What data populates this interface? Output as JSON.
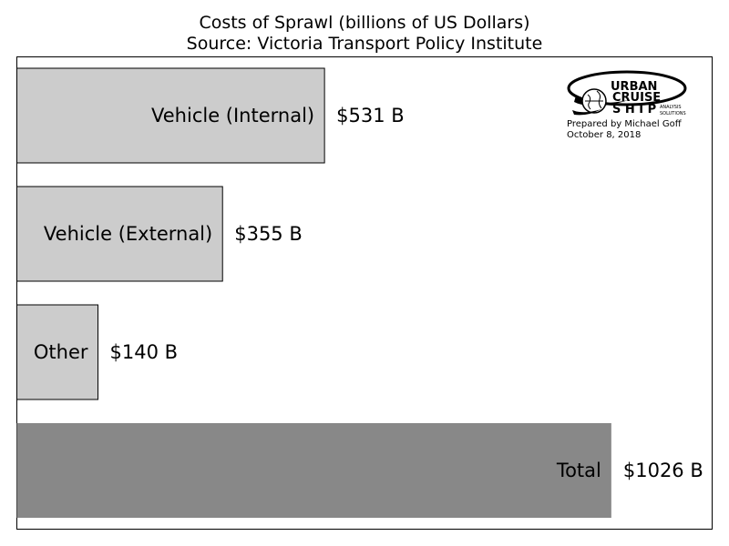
{
  "chart_data": {
    "type": "bar",
    "orientation": "horizontal",
    "title": "Costs of Sprawl (billions of US Dollars)",
    "subtitle": "Source: Victoria Transport Policy Institute",
    "categories": [
      "Vehicle (Internal)",
      "Vehicle (External)",
      "Other",
      "Total"
    ],
    "values": [
      531,
      355,
      140,
      1026
    ],
    "value_labels": [
      "$531 B",
      "$355 B",
      "$140 B",
      "$1026 B"
    ],
    "colors": [
      "#cccccc",
      "#cccccc",
      "#cccccc",
      "#888888"
    ],
    "xlim": [
      0,
      1200
    ],
    "grid": false
  },
  "logo": {
    "name": "urban-cruise-ship-logo",
    "line1": "URBAN",
    "line2": "CRUISE",
    "line3": "S H I P",
    "tagline1": "ANALYSIS",
    "tagline2": "SOLUTIONS"
  },
  "credit": {
    "prepared_by": "Prepared by Michael Goff",
    "date": "October 8, 2018"
  }
}
